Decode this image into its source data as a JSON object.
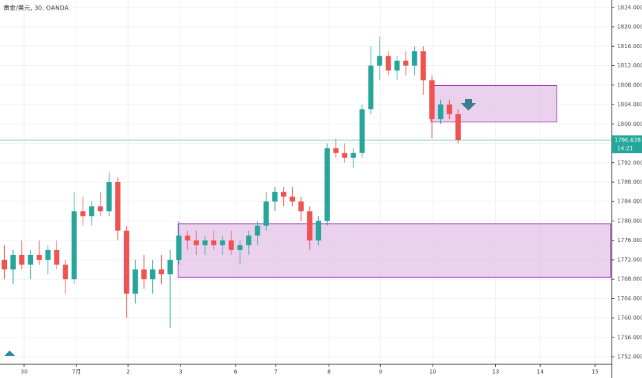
{
  "chart_data": {
    "type": "candlestick",
    "title": "黄金/美元, 30, OANDA",
    "x": [
      0.5,
      1.5,
      2.5,
      3.5,
      4.5,
      5.5,
      6.5,
      7.5,
      8.5,
      9.5,
      10.5,
      11.5,
      12.5,
      13.5,
      14.5,
      15.5,
      16.5,
      17.5,
      18.5,
      19.5,
      20.5,
      21.5,
      22.5,
      23.5,
      24.5,
      25.5,
      26.5,
      27.5,
      28.5,
      29.5,
      30.5,
      31.5,
      32.5,
      33.5,
      34.5,
      35.5,
      36.5,
      37.5,
      38.5,
      39.5,
      40.5,
      41.5,
      42.5,
      43.5,
      44.5,
      45.5,
      46.5,
      47.5,
      48.5,
      49.5,
      50.5,
      51.5,
      52.5
    ],
    "open": [
      1772,
      1770,
      1773,
      1771,
      1773,
      1772,
      1774,
      1771,
      1768,
      1782,
      1781,
      1783,
      1782,
      1788,
      1778,
      1765,
      1770,
      1768,
      1770,
      1769,
      1772,
      1777,
      1776,
      1775,
      1776,
      1775,
      1776,
      1774,
      1775,
      1777,
      1779,
      1784,
      1786,
      1785,
      1784,
      1782,
      1776,
      1780,
      1795,
      1794,
      1793,
      1794,
      1803,
      1812,
      1814,
      1811,
      1813,
      1812,
      1815,
      1809,
      1801,
      1804,
      1802
    ],
    "high": [
      1775,
      1774,
      1776,
      1774,
      1776,
      1775,
      1776,
      1772,
      1786,
      1785,
      1784,
      1786,
      1790,
      1789,
      1779,
      1772,
      1773,
      1772,
      1773,
      1774,
      1780,
      1778,
      1778,
      1777,
      1778,
      1777,
      1778,
      1776,
      1778,
      1780,
      1786,
      1787,
      1787,
      1787,
      1785,
      1783,
      1781,
      1796,
      1797,
      1796,
      1795,
      1804,
      1816,
      1818,
      1815,
      1814,
      1815,
      1816,
      1816,
      1810,
      1805,
      1805,
      1803
    ],
    "low": [
      1768,
      1767,
      1770,
      1768,
      1771,
      1769,
      1770,
      1765,
      1767,
      1779,
      1779,
      1781,
      1781,
      1776,
      1760,
      1763,
      1766,
      1765,
      1767,
      1758,
      1771,
      1774,
      1773,
      1773,
      1774,
      1773,
      1773,
      1771,
      1773,
      1775,
      1778,
      1782,
      1783,
      1783,
      1780,
      1774,
      1775,
      1779,
      1793,
      1792,
      1791,
      1793,
      1802,
      1809,
      1810,
      1809,
      1810,
      1810,
      1806,
      1797,
      1800,
      1801,
      1796
    ],
    "close": [
      1770,
      1773,
      1771,
      1773,
      1772,
      1774,
      1771,
      1768,
      1782,
      1781,
      1783,
      1782,
      1788,
      1778,
      1765,
      1770,
      1768,
      1770,
      1769,
      1772,
      1777,
      1776,
      1775,
      1776,
      1775,
      1776,
      1774,
      1775,
      1777,
      1779,
      1784,
      1786,
      1785,
      1784,
      1782,
      1776,
      1780,
      1795,
      1794,
      1793,
      1794,
      1803,
      1812,
      1814,
      1811,
      1813,
      1812,
      1815,
      1809,
      1801,
      1804,
      1802,
      1796.638
    ],
    "up_color": "#26a69a",
    "down_color": "#ef5350",
    "last_price": 1796.638,
    "last_price_label": "1796.638",
    "countdown": "14:21",
    "zones": [
      {
        "x0": 49.4,
        "x1": 63.8,
        "top": 1807.9,
        "bottom": 1800.4
      },
      {
        "x0": 20.4,
        "x1": 70.0,
        "top": 1779.4,
        "bottom": 1768.4
      }
    ],
    "zone_color": "#e1bee7",
    "xlim": [
      0,
      70.1
    ],
    "xticks": [
      {
        "value": 2.76,
        "label": "30"
      },
      {
        "value": 8.76,
        "label": "7月"
      },
      {
        "value": 14.68,
        "label": "2"
      },
      {
        "value": 20.7,
        "label": "3"
      },
      {
        "value": 27.0,
        "label": "6"
      },
      {
        "value": 31.6,
        "label": "7"
      },
      {
        "value": 37.7,
        "label": "8"
      },
      {
        "value": 43.6,
        "label": "9"
      },
      {
        "value": 49.6,
        "label": "10"
      },
      {
        "value": 56.8,
        "label": "13"
      },
      {
        "value": 61.9,
        "label": "14"
      },
      {
        "value": 68.2,
        "label": "15"
      }
    ],
    "ylim": [
      1750.47,
      1825.53
    ],
    "yticks": [
      {
        "value": 1752,
        "label": "1752.000"
      },
      {
        "value": 1756,
        "label": "1756.000"
      },
      {
        "value": 1760,
        "label": "1760.000"
      },
      {
        "value": 1764,
        "label": "1764.000"
      },
      {
        "value": 1768,
        "label": "1768.000"
      },
      {
        "value": 1772,
        "label": "1772.000"
      },
      {
        "value": 1776,
        "label": "1776.000"
      },
      {
        "value": 1780,
        "label": "1780.000"
      },
      {
        "value": 1784,
        "label": "1784.000"
      },
      {
        "value": 1788,
        "label": "1788.000"
      },
      {
        "value": 1792,
        "label": "1792.000"
      },
      {
        "value": 1796,
        "label": "1796.000"
      },
      {
        "value": 1800,
        "label": "1800.000"
      },
      {
        "value": 1804,
        "label": "1804.000"
      },
      {
        "value": 1808,
        "label": "1808.000"
      },
      {
        "value": 1812,
        "label": "1812.000"
      },
      {
        "value": 1816,
        "label": "1816.000"
      },
      {
        "value": 1820,
        "label": "1820.000"
      },
      {
        "value": 1824,
        "label": "1824.000"
      }
    ],
    "grid": true
  }
}
